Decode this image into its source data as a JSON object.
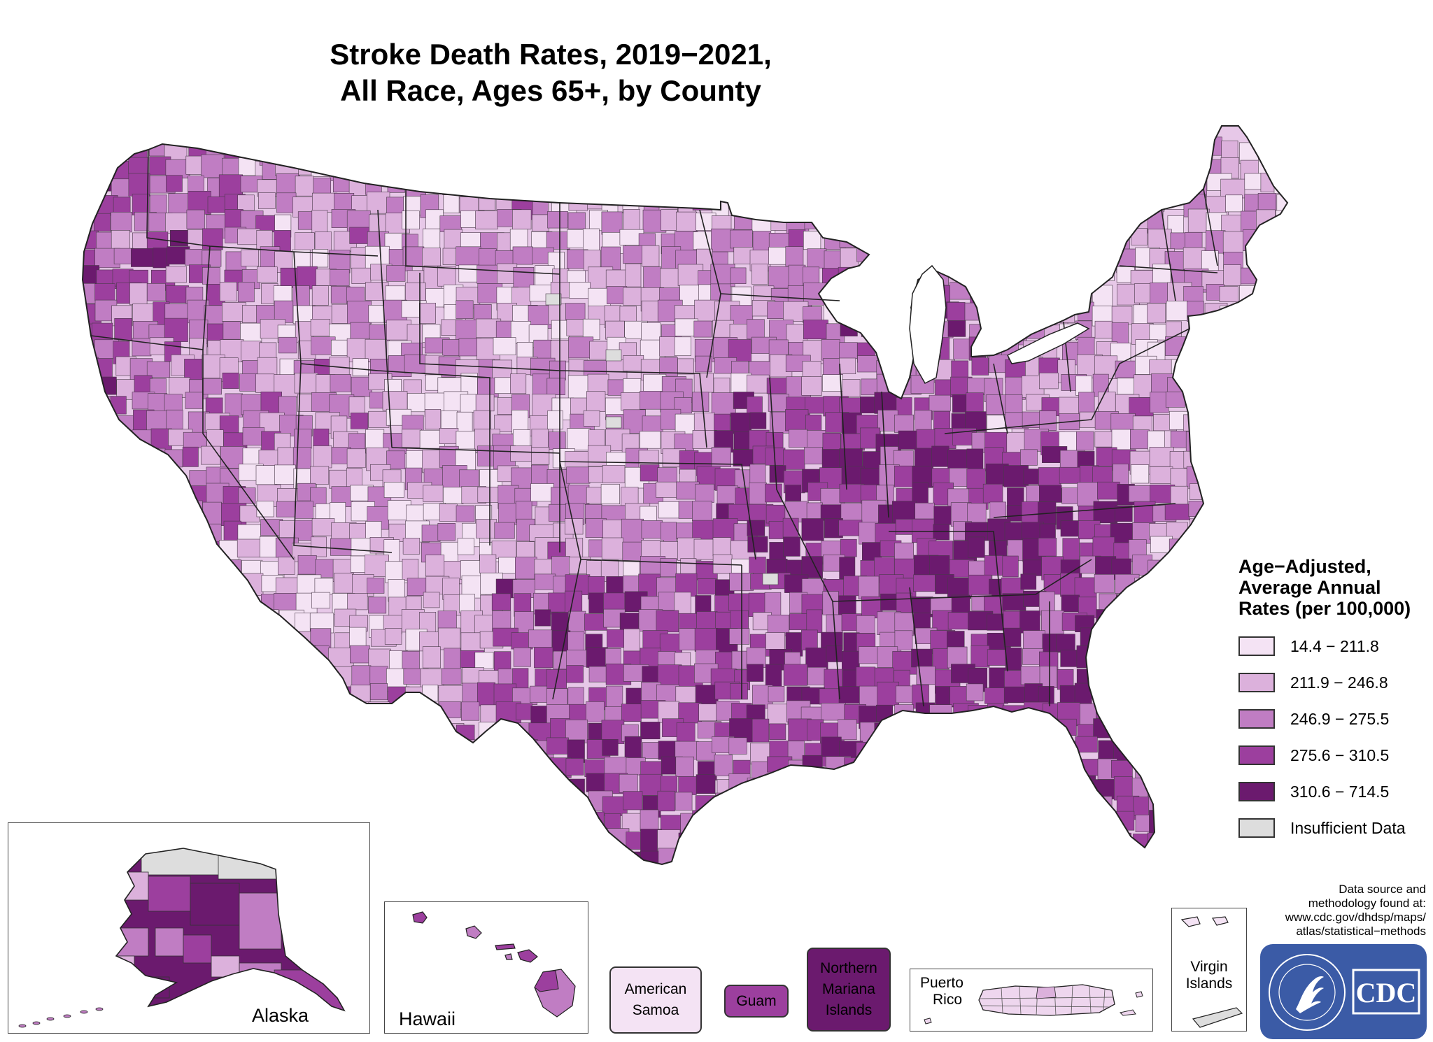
{
  "title": {
    "line1": "Stroke Death Rates, 2019−2021,",
    "line2": "All Race, Ages 65+, by County"
  },
  "legend": {
    "title_lines": [
      "Age−Adjusted,",
      "Average Annual",
      "Rates (per 100,000)"
    ],
    "items": [
      {
        "label": "14.4 − 211.8",
        "color": "#f4e3f4"
      },
      {
        "label": "211.9 − 246.8",
        "color": "#dcb1dc"
      },
      {
        "label": "246.9 − 275.5",
        "color": "#c07dc3"
      },
      {
        "label": "275.6 − 310.5",
        "color": "#9c3f9e"
      },
      {
        "label": "310.6 − 714.5",
        "color": "#6b1a6e"
      },
      {
        "label": "Insufficient Data",
        "color": "#dddddd"
      }
    ]
  },
  "insets": {
    "alaska": "Alaska",
    "hawaii": "Hawaii",
    "puerto_rico": [
      "Puerto",
      "Rico"
    ],
    "virgin_islands": [
      "Virgin",
      "Islands"
    ]
  },
  "territories": {
    "american_samoa": {
      "lines": [
        "American",
        "Samoa"
      ],
      "color": "#f4e3f4",
      "text_color": "#000000"
    },
    "guam": {
      "lines": [
        "Guam"
      ],
      "color": "#9c3f9e",
      "text_color": "#000000"
    },
    "northern_mariana": {
      "lines": [
        "Northern",
        "Mariana",
        "Islands"
      ],
      "color": "#6b1a6e",
      "text_color": "#000000"
    }
  },
  "source": {
    "lines": [
      "Data source and",
      "methodology found at:",
      "www.cdc.gov/dhdsp/maps/",
      "atlas/statistical−methods"
    ]
  },
  "logo": {
    "text": "CDC",
    "ring_text": "DEPARTMENT OF HEALTH & HUMAN SERVICES·USA",
    "color": "#3b5ba6"
  }
}
